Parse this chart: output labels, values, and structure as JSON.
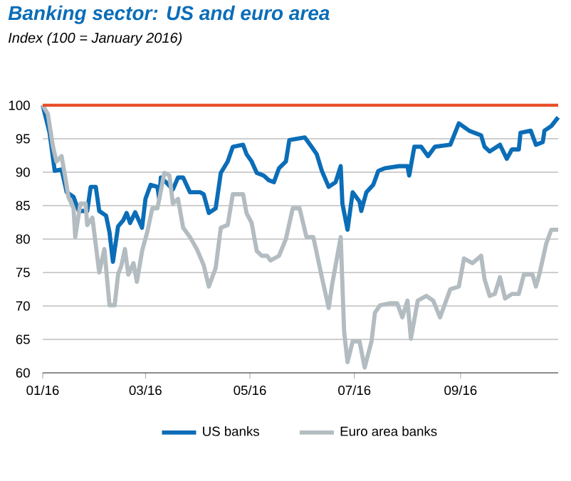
{
  "chart_data": {
    "type": "line",
    "title": "Banking sector: US and euro area",
    "subtitle": "Index (100 = January 2016)",
    "xlim": [
      "2016-01-01",
      "2016-10-28"
    ],
    "ylim": [
      60,
      100
    ],
    "xticks": [
      {
        "value": "2016-01-01",
        "label": "01/16"
      },
      {
        "value": "2016-03-01",
        "label": "03/16"
      },
      {
        "value": "2016-05-01",
        "label": "05/16"
      },
      {
        "value": "2016-07-01",
        "label": "07/16"
      },
      {
        "value": "2016-09-01",
        "label": "09/16"
      }
    ],
    "yticks": [
      60,
      65,
      70,
      75,
      80,
      85,
      90,
      95,
      100
    ],
    "grid": "y",
    "legend": "bottom",
    "line_style": "solid",
    "ref_lines": [
      {
        "axis": "y",
        "value": 100,
        "color": "#e8502a"
      }
    ],
    "series": [
      {
        "name": "US banks",
        "color": "#0b6db7",
        "x": [
          "2016-01-01",
          "2016-01-05",
          "2016-01-08",
          "2016-01-12",
          "2016-01-15",
          "2016-01-19",
          "2016-01-22",
          "2016-01-27",
          "2016-01-29",
          "2016-02-01",
          "2016-02-03",
          "2016-02-07",
          "2016-02-09",
          "2016-02-11",
          "2016-02-14",
          "2016-02-17",
          "2016-02-19",
          "2016-02-21",
          "2016-02-24",
          "2016-02-28",
          "2016-03-01",
          "2016-03-04",
          "2016-03-08",
          "2016-03-09",
          "2016-03-10",
          "2016-03-13",
          "2016-03-17",
          "2016-03-20",
          "2016-03-23",
          "2016-03-27",
          "2016-04-02",
          "2016-04-04",
          "2016-04-07",
          "2016-04-11",
          "2016-04-14",
          "2016-04-18",
          "2016-04-21",
          "2016-04-27",
          "2016-04-29",
          "2016-05-02",
          "2016-05-05",
          "2016-05-09",
          "2016-05-12",
          "2016-05-15",
          "2016-05-18",
          "2016-05-22",
          "2016-05-24",
          "2016-06-02",
          "2016-06-06",
          "2016-06-09",
          "2016-06-12",
          "2016-06-16",
          "2016-06-20",
          "2016-06-23",
          "2016-06-24",
          "2016-06-27",
          "2016-06-30",
          "2016-07-04",
          "2016-07-05",
          "2016-07-08",
          "2016-07-12",
          "2016-07-15",
          "2016-07-19",
          "2016-07-27",
          "2016-08-01",
          "2016-08-02",
          "2016-08-05",
          "2016-08-09",
          "2016-08-13",
          "2016-08-17",
          "2016-08-26",
          "2016-08-31",
          "2016-09-06",
          "2016-09-13",
          "2016-09-15",
          "2016-09-18",
          "2016-09-24",
          "2016-09-28",
          "2016-10-01",
          "2016-10-05",
          "2016-10-06",
          "2016-10-12",
          "2016-10-15",
          "2016-10-19",
          "2016-10-20",
          "2016-10-24",
          "2016-10-28"
        ],
        "values": [
          100,
          95.9,
          90.2,
          90.4,
          87,
          86.3,
          84.2,
          84.2,
          87.8,
          87.8,
          84.2,
          83.5,
          81,
          76.6,
          81.9,
          82.8,
          83.9,
          82.4,
          84,
          81.7,
          86,
          88.1,
          87.8,
          86,
          89.2,
          88.5,
          87.4,
          89.2,
          89.2,
          87,
          87,
          86.7,
          83.9,
          84.6,
          89.9,
          91.6,
          93.8,
          94.1,
          92.7,
          91.6,
          89.9,
          89.5,
          88.8,
          88.5,
          90.6,
          91.6,
          94.8,
          95.2,
          93.8,
          92.7,
          90.2,
          87.8,
          88.5,
          90.9,
          85.3,
          81.4,
          87,
          85.6,
          84.2,
          87,
          88.1,
          90.2,
          90.6,
          90.9,
          90.9,
          89.5,
          93.8,
          93.8,
          92.4,
          93.8,
          94.1,
          97.3,
          96.2,
          95.5,
          93.8,
          93.1,
          94.1,
          92,
          93.4,
          93.4,
          95.9,
          96.2,
          94.1,
          94.5,
          96.2,
          96.9,
          98.2
        ]
      },
      {
        "name": "Euro area banks",
        "color": "#b3bcc1",
        "x": [
          "2016-01-01",
          "2016-01-04",
          "2016-01-07",
          "2016-01-09",
          "2016-01-12",
          "2016-01-14",
          "2016-01-16",
          "2016-01-19",
          "2016-01-20",
          "2016-01-23",
          "2016-01-26",
          "2016-01-27",
          "2016-01-30",
          "2016-02-03",
          "2016-02-06",
          "2016-02-09",
          "2016-02-12",
          "2016-02-14",
          "2016-02-16",
          "2016-02-18",
          "2016-02-20",
          "2016-02-23",
          "2016-02-25",
          "2016-02-28",
          "2016-03-02",
          "2016-03-05",
          "2016-03-08",
          "2016-03-12",
          "2016-03-15",
          "2016-03-17",
          "2016-03-20",
          "2016-03-23",
          "2016-03-27",
          "2016-03-31",
          "2016-04-04",
          "2016-04-07",
          "2016-04-11",
          "2016-04-14",
          "2016-04-18",
          "2016-04-21",
          "2016-04-27",
          "2016-04-29",
          "2016-05-02",
          "2016-05-05",
          "2016-05-08",
          "2016-05-11",
          "2016-05-13",
          "2016-05-18",
          "2016-05-22",
          "2016-05-26",
          "2016-05-30",
          "2016-06-03",
          "2016-06-07",
          "2016-06-12",
          "2016-06-16",
          "2016-06-18",
          "2016-06-23",
          "2016-06-25",
          "2016-06-27",
          "2016-06-30",
          "2016-07-04",
          "2016-07-07",
          "2016-07-11",
          "2016-07-13",
          "2016-07-16",
          "2016-07-22",
          "2016-07-26",
          "2016-07-29",
          "2016-08-01",
          "2016-08-03",
          "2016-08-07",
          "2016-08-12",
          "2016-08-16",
          "2016-08-20",
          "2016-08-26",
          "2016-08-31",
          "2016-09-03",
          "2016-09-08",
          "2016-09-13",
          "2016-09-15",
          "2016-09-18",
          "2016-09-21",
          "2016-09-24",
          "2016-09-27",
          "2016-10-01",
          "2016-10-05",
          "2016-10-08",
          "2016-10-13",
          "2016-10-15",
          "2016-10-17",
          "2016-10-21",
          "2016-10-24",
          "2016-10-28"
        ],
        "values": [
          100,
          98.7,
          93.8,
          91.6,
          92.4,
          89.5,
          86.3,
          84.6,
          80.3,
          85.3,
          85.3,
          82.1,
          83.2,
          75,
          78.5,
          70.1,
          70.1,
          74.7,
          76.1,
          78.5,
          74.7,
          76.4,
          73.6,
          78.2,
          81,
          84.6,
          84.6,
          89.9,
          89.5,
          85.3,
          86,
          81.7,
          80.3,
          78.5,
          76.1,
          72.9,
          75.7,
          81.7,
          82.1,
          86.7,
          86.7,
          83.9,
          82.4,
          78.2,
          77.5,
          77.5,
          76.8,
          77.5,
          80,
          84.6,
          84.6,
          80.3,
          80.3,
          74.3,
          69.7,
          73.2,
          80.3,
          66.2,
          61.6,
          64.7,
          64.7,
          60.8,
          64.7,
          69,
          70.1,
          70.4,
          70.4,
          68.3,
          70.8,
          65.1,
          70.8,
          71.5,
          70.8,
          68.3,
          72.5,
          72.9,
          77.1,
          76.4,
          77.5,
          74,
          71.5,
          71.8,
          74.3,
          71.1,
          71.8,
          71.8,
          74.7,
          74.7,
          72.9,
          74.7,
          79.3,
          81.4,
          81.4
        ]
      }
    ]
  }
}
